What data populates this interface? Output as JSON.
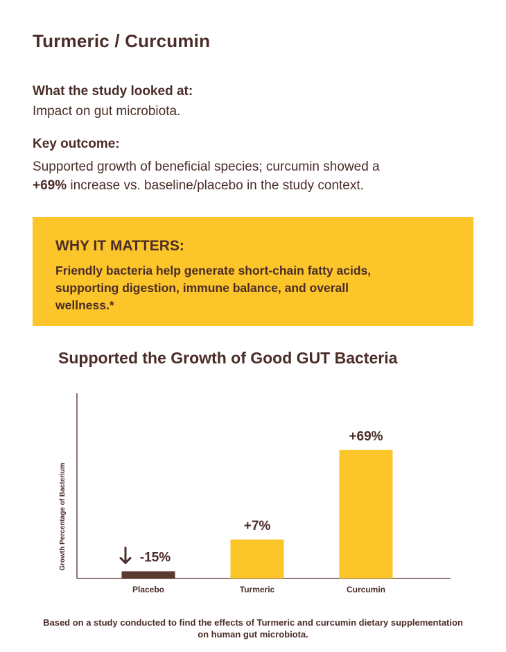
{
  "page": {
    "title": "Turmeric / Curcumin",
    "study_label": "What the study looked at:",
    "study_text": "Impact on gut microbiota.",
    "outcome_label": "Key outcome:",
    "outcome_text_before": "Supported growth of beneficial species; curcumin showed a",
    "outcome_highlight": "+69%",
    "outcome_text_after": " increase vs. baseline/placebo in the study context."
  },
  "callout": {
    "heading": "WHY IT MATTERS:",
    "text": "Friendly bacteria help generate short-chain fatty acids, supporting digestion, immune balance, and overall wellness.*"
  },
  "colors": {
    "text": "#4a2c28",
    "accent": "#fcc52a",
    "placebo": "#5a3a33"
  },
  "chart_data": {
    "type": "bar",
    "title": "Supported the Growth of Good GUT Bacteria",
    "xlabel": "",
    "ylabel": "Growth Percentage of Bacterium",
    "categories": [
      "Placebo",
      "Turmeric",
      "Curcumin"
    ],
    "values": [
      -15,
      7,
      69
    ],
    "data_labels": [
      "-15%",
      "+7%",
      "+69%"
    ],
    "bar_colors": [
      "#5a3a33",
      "#fcc52a",
      "#fcc52a"
    ],
    "down_arrow_on": "Placebo",
    "ylim": [
      -20,
      80
    ],
    "grid": false,
    "legend": "none"
  },
  "caption": "Based on a study conducted to find the effects of Turmeric and curcumin dietary supplementation on human gut microbiota."
}
